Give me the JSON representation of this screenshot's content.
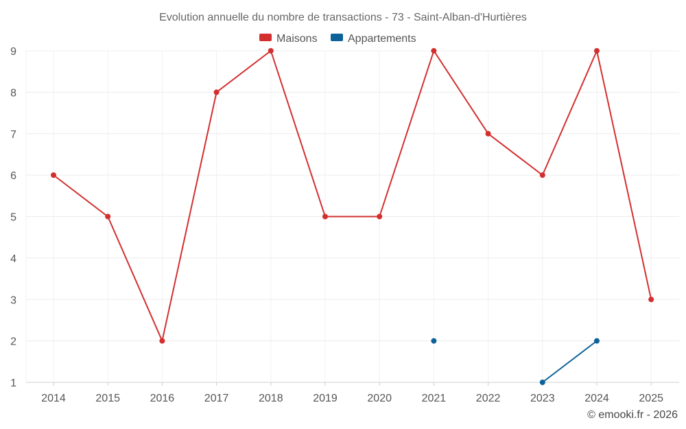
{
  "chart_data": {
    "type": "line",
    "title": "Evolution annuelle du nombre de transactions - 73 - Saint-Alban-d'Hurtières",
    "categories": [
      "2014",
      "2015",
      "2016",
      "2017",
      "2018",
      "2019",
      "2020",
      "2021",
      "2022",
      "2023",
      "2024",
      "2025"
    ],
    "series": [
      {
        "name": "Maisons",
        "color": "#d32f2f",
        "values": [
          6,
          5,
          2,
          8,
          9,
          5,
          5,
          9,
          7,
          6,
          9,
          3
        ]
      },
      {
        "name": "Appartements",
        "color": "#0d6399",
        "values": [
          null,
          null,
          null,
          null,
          null,
          null,
          null,
          2,
          null,
          1,
          2,
          null
        ]
      }
    ],
    "ylim": [
      1,
      9
    ],
    "yticks": [
      1,
      2,
      3,
      4,
      5,
      6,
      7,
      8,
      9
    ],
    "grid": true,
    "legend_position": "top-center",
    "credit": "© emooki.fr - 2026"
  }
}
